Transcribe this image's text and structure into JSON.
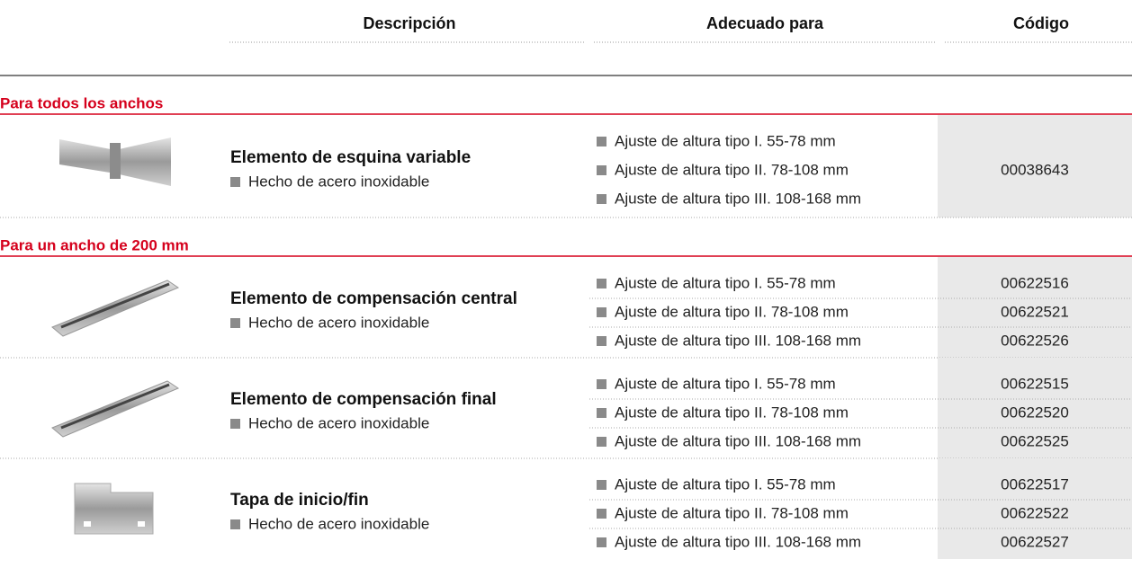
{
  "header": {
    "columns": [
      "Descripción",
      "Adecuado para",
      "Código"
    ]
  },
  "sections": [
    {
      "title": "Para todos los anchos",
      "products": [
        {
          "name": "Elemento de esquina variable",
          "material": "Hecho de acero inoxidable",
          "suitable": [
            "Ajuste de altura tipo I. 55-78 mm",
            "Ajuste de altura tipo II. 78-108 mm",
            "Ajuste de altura tipo III. 108-168 mm"
          ],
          "codes": [
            "00038643"
          ]
        }
      ]
    },
    {
      "title": "Para un ancho de 200 mm",
      "products": [
        {
          "name": "Elemento de compensación central",
          "material": "Hecho de acero inoxidable",
          "suitable": [
            "Ajuste de altura tipo I. 55-78 mm",
            "Ajuste de altura tipo II. 78-108 mm",
            "Ajuste de altura tipo III. 108-168 mm"
          ],
          "codes": [
            "00622516",
            "00622521",
            "00622526"
          ]
        },
        {
          "name": "Elemento de compensación final",
          "material": "Hecho de acero inoxidable",
          "suitable": [
            "Ajuste de altura tipo I. 55-78 mm",
            "Ajuste de altura tipo II. 78-108 mm",
            "Ajuste de altura tipo III. 108-168 mm"
          ],
          "codes": [
            "00622515",
            "00622520",
            "00622525"
          ]
        },
        {
          "name": "Tapa de inicio/fin",
          "material": "Hecho de acero inoxidable",
          "suitable": [
            "Ajuste de altura tipo I. 55-78 mm",
            "Ajuste de altura tipo II. 78-108 mm",
            "Ajuste de altura tipo III. 108-168 mm"
          ],
          "codes": [
            "00622517",
            "00622522",
            "00622527"
          ]
        }
      ]
    }
  ]
}
